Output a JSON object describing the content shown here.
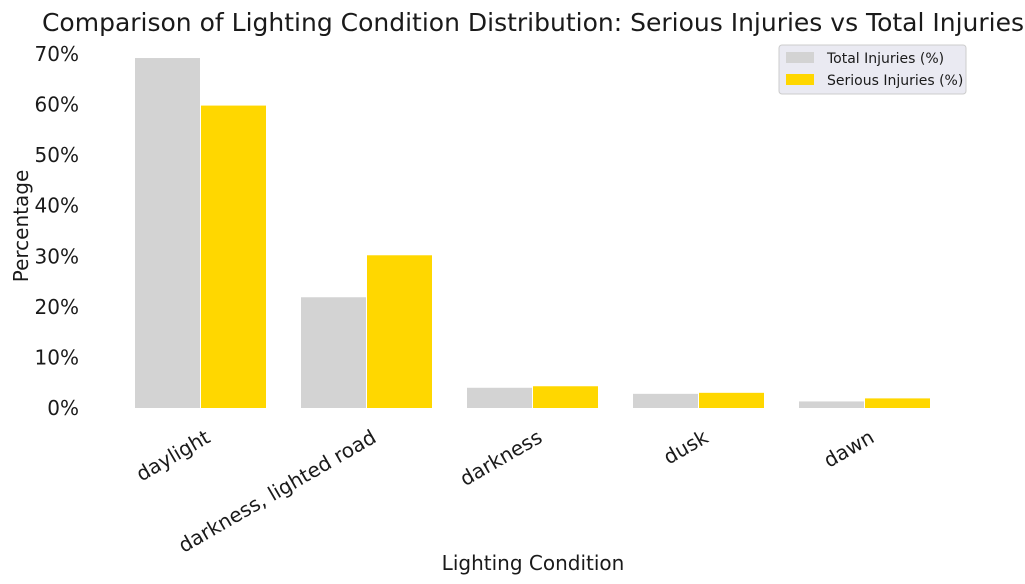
{
  "chart_data": {
    "type": "bar",
    "title": "Comparison of Lighting Condition Distribution: Serious Injuries vs Total Injuries",
    "xlabel": "Lighting Condition",
    "ylabel": "Percentage",
    "categories": [
      "daylight",
      "darkness, lighted road",
      "darkness",
      "dusk",
      "dawn"
    ],
    "series": [
      {
        "name": "Total Injuries (%)",
        "color": "#d3d3d3",
        "values": [
          69.2,
          21.9,
          4.0,
          2.8,
          1.3
        ]
      },
      {
        "name": "Serious Injuries (%)",
        "color": "#ffd700",
        "values": [
          59.8,
          30.2,
          4.3,
          3.0,
          1.9
        ]
      }
    ],
    "ylim": [
      0,
      70
    ],
    "yticks": [
      "0%",
      "10%",
      "20%",
      "30%",
      "40%",
      "50%",
      "60%",
      "70%"
    ],
    "grid": false,
    "legend_position": "top-right",
    "xtick_rotation": 30
  }
}
